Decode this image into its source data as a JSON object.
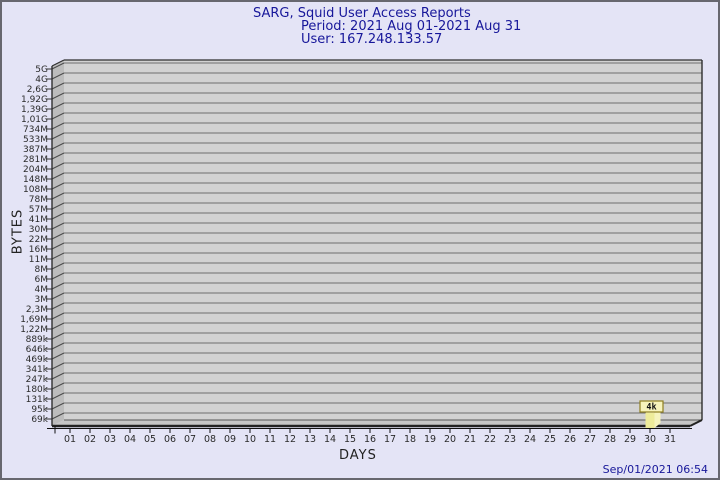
{
  "window": {
    "background_color": "#e4e4f6",
    "border_color": "#67676f"
  },
  "header": {
    "title": "SARG, Squid User Access Reports",
    "period": "Period: 2021 Aug 01-2021 Aug 31",
    "user": "User: 167.248.133.57",
    "text_color": "#17179a"
  },
  "footer": {
    "timestamp": "Sep/01/2021 06:54"
  },
  "chart_data": {
    "type": "bar",
    "title": "SARG, Squid User Access Reports",
    "subtitle_lines": [
      "Period: 2021 Aug 01-2021 Aug 31",
      "User: 167.248.133.57"
    ],
    "xlabel": "DAYS",
    "ylabel": "BYTES",
    "legend": "none",
    "grid": "horizontal",
    "style_3d": true,
    "y_scale": "log-like geometric ticks",
    "y_tick_labels": [
      "5G",
      "4G",
      "2,6G",
      "1,92G",
      "1,39G",
      "1,01G",
      "734M",
      "533M",
      "387M",
      "281M",
      "204M",
      "148M",
      "108M",
      "78M",
      "57M",
      "41M",
      "30M",
      "22M",
      "16M",
      "11M",
      "8M",
      "6M",
      "4M",
      "3M",
      "2,3M",
      "1,69M",
      "1,22M",
      "889k",
      "646k",
      "469k",
      "341k",
      "247k",
      "180k",
      "131k",
      "95k",
      "69k"
    ],
    "x_categories": [
      "01",
      "02",
      "03",
      "04",
      "05",
      "06",
      "07",
      "08",
      "09",
      "10",
      "11",
      "12",
      "13",
      "14",
      "15",
      "16",
      "17",
      "18",
      "19",
      "20",
      "21",
      "22",
      "23",
      "24",
      "25",
      "26",
      "27",
      "28",
      "29",
      "30",
      "31"
    ],
    "values": [
      0,
      0,
      0,
      0,
      0,
      0,
      0,
      0,
      0,
      0,
      0,
      0,
      0,
      0,
      0,
      0,
      0,
      0,
      0,
      0,
      0,
      0,
      0,
      0,
      0,
      0,
      0,
      0,
      0,
      4000,
      0
    ],
    "bars": [
      {
        "x_category": "30",
        "display_value": "4k",
        "value_bytes": 4000
      }
    ],
    "colors": {
      "bar_front": "#eeec9a",
      "bar_side": "#f6f4be",
      "bar_top": "#fbf9d6",
      "callout_fill": "#f7f3bb",
      "callout_border": "#8f7f1f",
      "back_wall": "#d2d2d2",
      "left_wall": "#bcbcbc",
      "floor": "#c6c6c6",
      "grid_line": "#6e6e6e",
      "edge": "#2f2f2f"
    }
  }
}
